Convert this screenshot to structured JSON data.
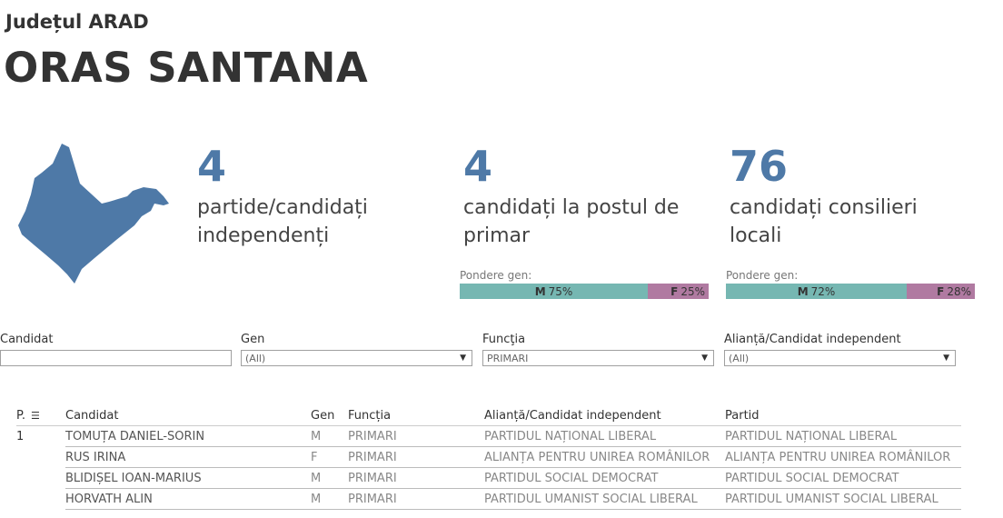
{
  "header": {
    "county": "Județul ARAD",
    "city": "ORAS SANTANA"
  },
  "map": {
    "fill": "#4e79a7",
    "icon": "locality-shape"
  },
  "stats": [
    {
      "value": "4",
      "label": "partide/candidați independenți"
    },
    {
      "value": "4",
      "label": "candidați la postul de primar"
    },
    {
      "value": "76",
      "label": "candidați consilieri locali"
    }
  ],
  "gender_primar": {
    "caption": "Pondere gen:",
    "m_letter": "M",
    "m_pct": "75%",
    "f_letter": "F",
    "f_pct": "25%",
    "m_share": 0.75
  },
  "gender_consilieri": {
    "caption": "Pondere gen:",
    "m_letter": "M",
    "m_pct": "72%",
    "f_letter": "F",
    "f_pct": "28%",
    "m_share": 0.72
  },
  "colors": {
    "accent": "#4e79a7",
    "male": "#76b7b2",
    "female": "#b07aa1"
  },
  "filters": {
    "candidat": {
      "label": "Candidat",
      "value": ""
    },
    "gen": {
      "label": "Gen",
      "value": "(All)"
    },
    "functia": {
      "label": "Funcţia",
      "value": "PRIMARI"
    },
    "alianta": {
      "label": "Alianță/Candidat independent",
      "value": "(All)"
    }
  },
  "table": {
    "headers": {
      "p": "P.",
      "candidat": "Candidat",
      "gen": "Gen",
      "functia": "Funcția",
      "alianta": "Alianță/Candidat independent",
      "partid": "Partid"
    },
    "rows": [
      {
        "p": "1",
        "candidat": "TOMUȚA DANIEL-SORIN",
        "gen": "M",
        "functia": "PRIMARI",
        "alianta": "PARTIDUL NAȚIONAL LIBERAL",
        "partid": "PARTIDUL NAȚIONAL LIBERAL"
      },
      {
        "p": "",
        "candidat": "RUS IRINA",
        "gen": "F",
        "functia": "PRIMARI",
        "alianta": "ALIANȚA PENTRU UNIREA ROMÂNILOR",
        "partid": "ALIANȚA PENTRU UNIREA ROMÂNILOR"
      },
      {
        "p": "",
        "candidat": "BLIDIȘEL IOAN-MARIUS",
        "gen": "M",
        "functia": "PRIMARI",
        "alianta": "PARTIDUL SOCIAL DEMOCRAT",
        "partid": "PARTIDUL SOCIAL DEMOCRAT"
      },
      {
        "p": "",
        "candidat": "HORVATH ALIN",
        "gen": "M",
        "functia": "PRIMARI",
        "alianta": "PARTIDUL UMANIST SOCIAL LIBERAL",
        "partid": "PARTIDUL UMANIST SOCIAL LIBERAL"
      }
    ]
  }
}
